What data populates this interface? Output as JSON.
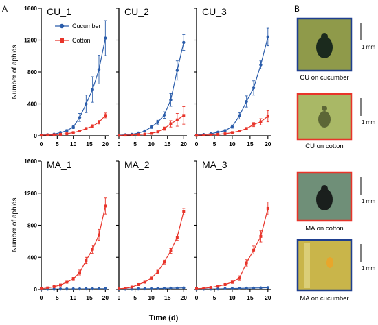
{
  "panel_labels": {
    "a": "A",
    "b": "B"
  },
  "axis": {
    "ylabel": "Number of aphids",
    "xlabel": "Time (d)"
  },
  "legend": [
    {
      "name": "Cucumber",
      "color": "#2a5caa",
      "marker": "circle"
    },
    {
      "name": "Cotton",
      "color": "#e8342a",
      "marker": "square"
    }
  ],
  "colors": {
    "cucumber": "#2a5caa",
    "cotton": "#e8342a"
  },
  "chart_data": [
    {
      "type": "line",
      "title": "CU_1",
      "x": [
        0,
        2,
        4,
        6,
        8,
        10,
        12,
        14,
        16,
        18,
        20
      ],
      "xticks": [
        0,
        5,
        10,
        15,
        20
      ],
      "yticks": [
        0,
        400,
        800,
        1200,
        1600
      ],
      "xlim": [
        0,
        21
      ],
      "ylim": [
        0,
        1600
      ],
      "series": [
        {
          "name": "Cucumber",
          "values": [
            10,
            12,
            20,
            40,
            65,
            110,
            230,
            400,
            580,
            830,
            1225
          ],
          "errors": [
            3,
            3,
            5,
            8,
            12,
            20,
            50,
            110,
            160,
            180,
            220
          ]
        },
        {
          "name": "Cotton",
          "values": [
            8,
            10,
            12,
            18,
            25,
            40,
            60,
            90,
            120,
            170,
            255
          ],
          "errors": [
            2,
            2,
            3,
            4,
            5,
            8,
            10,
            15,
            18,
            22,
            30
          ]
        }
      ]
    },
    {
      "type": "line",
      "title": "CU_2",
      "x": [
        0,
        2,
        4,
        6,
        8,
        10,
        12,
        14,
        16,
        18,
        20
      ],
      "xticks": [
        0,
        5,
        10,
        15,
        20
      ],
      "yticks": [
        0,
        400,
        800,
        1200,
        1600
      ],
      "xlim": [
        0,
        21
      ],
      "ylim": [
        0,
        1600
      ],
      "series": [
        {
          "name": "Cucumber",
          "values": [
            8,
            12,
            18,
            35,
            60,
            110,
            170,
            260,
            450,
            820,
            1170
          ],
          "errors": [
            2,
            3,
            4,
            6,
            10,
            18,
            25,
            40,
            80,
            120,
            100
          ]
        },
        {
          "name": "Cotton",
          "values": [
            5,
            8,
            10,
            15,
            20,
            30,
            50,
            90,
            150,
            200,
            255
          ],
          "errors": [
            2,
            2,
            3,
            4,
            5,
            6,
            10,
            20,
            40,
            80,
            110
          ]
        }
      ]
    },
    {
      "type": "line",
      "title": "CU_3",
      "x": [
        0,
        2,
        4,
        6,
        8,
        10,
        12,
        14,
        16,
        18,
        20
      ],
      "xticks": [
        0,
        5,
        10,
        15,
        20
      ],
      "yticks": [
        0,
        400,
        800,
        1200,
        1600
      ],
      "xlim": [
        0,
        21
      ],
      "ylim": [
        0,
        1600
      ],
      "series": [
        {
          "name": "Cucumber",
          "values": [
            10,
            15,
            25,
            45,
            65,
            115,
            250,
            430,
            600,
            890,
            1240
          ],
          "errors": [
            3,
            4,
            5,
            8,
            10,
            20,
            40,
            70,
            90,
            50,
            110
          ]
        },
        {
          "name": "Cotton",
          "values": [
            6,
            9,
            12,
            18,
            25,
            40,
            60,
            90,
            140,
            175,
            245
          ],
          "errors": [
            2,
            2,
            3,
            4,
            5,
            6,
            10,
            15,
            25,
            40,
            70
          ]
        }
      ]
    },
    {
      "type": "line",
      "title": "MA_1",
      "x": [
        0,
        2,
        4,
        6,
        8,
        10,
        12,
        14,
        16,
        18,
        20
      ],
      "xticks": [
        0,
        5,
        10,
        15,
        20
      ],
      "yticks": [
        0,
        400,
        800,
        1200,
        1600
      ],
      "xlim": [
        0,
        21
      ],
      "ylim": [
        0,
        1600
      ],
      "series": [
        {
          "name": "Cucumber",
          "values": [
            5,
            6,
            6,
            7,
            7,
            8,
            8,
            9,
            9,
            10,
            10
          ],
          "errors": [
            1,
            1,
            1,
            1,
            1,
            1,
            1,
            1,
            1,
            1,
            1
          ]
        },
        {
          "name": "Cotton",
          "values": [
            10,
            20,
            35,
            55,
            90,
            130,
            210,
            360,
            500,
            680,
            1040
          ],
          "errors": [
            3,
            4,
            6,
            8,
            12,
            20,
            30,
            40,
            50,
            70,
            100
          ]
        }
      ]
    },
    {
      "type": "line",
      "title": "MA_2",
      "x": [
        0,
        2,
        4,
        6,
        8,
        10,
        12,
        14,
        16,
        18,
        20
      ],
      "xticks": [
        0,
        5,
        10,
        15,
        20
      ],
      "yticks": [
        0,
        400,
        800,
        1200,
        1600
      ],
      "xlim": [
        0,
        21
      ],
      "ylim": [
        0,
        1600
      ],
      "series": [
        {
          "name": "Cucumber",
          "values": [
            5,
            6,
            7,
            8,
            9,
            10,
            12,
            14,
            16,
            18,
            20
          ],
          "errors": [
            1,
            1,
            1,
            1,
            1,
            1,
            1,
            1,
            1,
            1,
            2
          ]
        },
        {
          "name": "Cotton",
          "values": [
            10,
            15,
            30,
            60,
            90,
            140,
            220,
            340,
            480,
            650,
            970
          ],
          "errors": [
            3,
            4,
            5,
            8,
            10,
            15,
            20,
            25,
            30,
            40,
            40
          ]
        }
      ]
    },
    {
      "type": "line",
      "title": "MA_3",
      "x": [
        0,
        2,
        4,
        6,
        8,
        10,
        12,
        14,
        16,
        18,
        20
      ],
      "xticks": [
        0,
        5,
        10,
        15,
        20
      ],
      "yticks": [
        0,
        400,
        800,
        1200,
        1600
      ],
      "xlim": [
        0,
        21
      ],
      "ylim": [
        0,
        1600
      ],
      "series": [
        {
          "name": "Cucumber",
          "values": [
            5,
            6,
            7,
            8,
            10,
            12,
            14,
            16,
            18,
            20,
            22
          ],
          "errors": [
            1,
            1,
            1,
            1,
            1,
            1,
            1,
            1,
            1,
            2,
            2
          ]
        },
        {
          "name": "Cotton",
          "values": [
            10,
            15,
            25,
            40,
            60,
            90,
            140,
            330,
            490,
            660,
            1010
          ],
          "errors": [
            3,
            4,
            5,
            6,
            8,
            15,
            30,
            40,
            50,
            70,
            80
          ]
        }
      ]
    }
  ],
  "photos": [
    {
      "caption": "CU on cucumber",
      "scale": "1 mm",
      "border": "#1f3f8f",
      "bg": "#8f9a4a",
      "insect": "#1b2a1d"
    },
    {
      "caption": "CU on cotton",
      "scale": "1 mm",
      "border": "#e8342a",
      "bg": "#a9b866",
      "insect": "#5c6636"
    },
    {
      "caption": "MA on cotton",
      "scale": "1 mm",
      "border": "#e8342a",
      "bg": "#6f8f78",
      "insect": "#1a1f1d"
    },
    {
      "caption": "MA on cucumber",
      "scale": "1 mm",
      "border": "#1f3f8f",
      "bg": "#c9b54a",
      "insect": "#e8a62b"
    }
  ]
}
